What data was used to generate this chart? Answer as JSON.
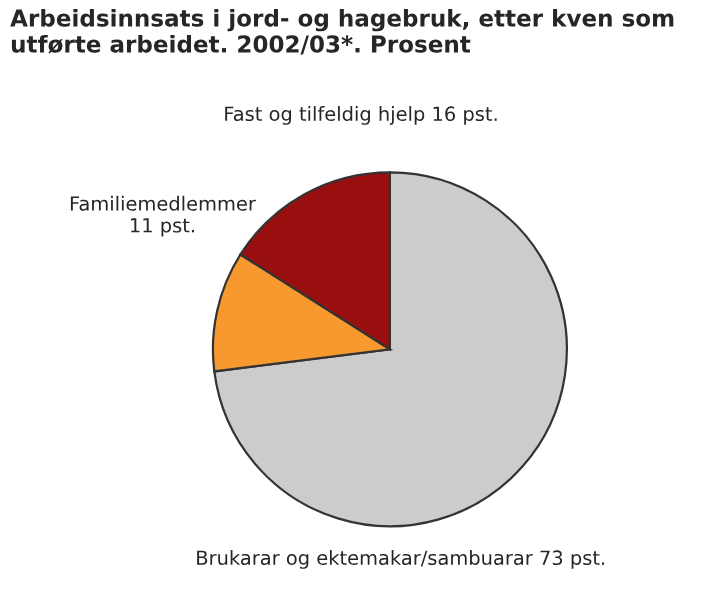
{
  "chart_data": {
    "type": "pie",
    "title": "Arbeidsinnsats i jord- og hagebruk, etter kven som utførte arbeidet. 2002/03*. Prosent",
    "categories": [
      "Brukarar og ektemakar/sambuarar",
      "Familiemedlemmer",
      "Fast og tilfeldig hjelp"
    ],
    "values": [
      73,
      11,
      16
    ],
    "value_labels": [
      "73 pst.",
      "11 pst.",
      "16 pst."
    ],
    "colors": [
      "#cccccc",
      "#f7992f",
      "#990f0f"
    ]
  }
}
